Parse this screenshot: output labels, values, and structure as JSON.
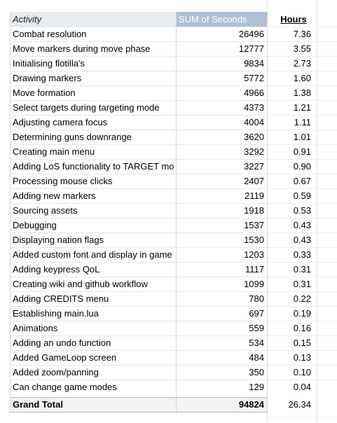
{
  "header": {
    "activity": "Activity",
    "sum_seconds": "SUM of Seconds",
    "hours": "Hours"
  },
  "rows": [
    {
      "activity": "Combat resolution",
      "seconds": "26496",
      "hours": "7.36"
    },
    {
      "activity": "Move markers during move phase",
      "seconds": "12777",
      "hours": "3.55"
    },
    {
      "activity": "Initialising flotilla's",
      "seconds": "9834",
      "hours": "2.73"
    },
    {
      "activity": "Drawing markers",
      "seconds": "5772",
      "hours": "1.60"
    },
    {
      "activity": "Move formation",
      "seconds": "4966",
      "hours": "1.38"
    },
    {
      "activity": "Select targets during targeting mode",
      "seconds": "4373",
      "hours": "1.21"
    },
    {
      "activity": "Adjusting camera focus",
      "seconds": "4004",
      "hours": "1.11"
    },
    {
      "activity": "Determining guns downrange",
      "seconds": "3620",
      "hours": "1.01"
    },
    {
      "activity": "Creating main menu",
      "seconds": "3292",
      "hours": "0.91"
    },
    {
      "activity": "Adding LoS functionality to TARGET mo",
      "seconds": "3227",
      "hours": "0.90"
    },
    {
      "activity": "Processing mouse clicks",
      "seconds": "2407",
      "hours": "0.67"
    },
    {
      "activity": "Adding new markers",
      "seconds": "2119",
      "hours": "0.59"
    },
    {
      "activity": "Sourcing assets",
      "seconds": "1918",
      "hours": "0.53"
    },
    {
      "activity": "Debugging",
      "seconds": "1537",
      "hours": "0.43"
    },
    {
      "activity": "Displaying nation flags",
      "seconds": "1530",
      "hours": "0.43"
    },
    {
      "activity": "Added custom font and display in game",
      "seconds": "1203",
      "hours": "0.33"
    },
    {
      "activity": "Adding keypress QoL",
      "seconds": "1117",
      "hours": "0.31"
    },
    {
      "activity": "Creating wiki and github workflow",
      "seconds": "1099",
      "hours": "0.31"
    },
    {
      "activity": "Adding CREDITS menu",
      "seconds": "780",
      "hours": "0.22"
    },
    {
      "activity": "Establishing main.lua",
      "seconds": "697",
      "hours": "0.19"
    },
    {
      "activity": "Animations",
      "seconds": "559",
      "hours": "0.16"
    },
    {
      "activity": "Adding an undo function",
      "seconds": "534",
      "hours": "0.15"
    },
    {
      "activity": "Added GameLoop screen",
      "seconds": "484",
      "hours": "0.13"
    },
    {
      "activity": "Added zoom/panning",
      "seconds": "350",
      "hours": "0.10"
    },
    {
      "activity": "Can change game modes",
      "seconds": "129",
      "hours": "0.04"
    }
  ],
  "total": {
    "label": "Grand Total",
    "seconds": "94824",
    "hours": "26.34"
  },
  "colors": {
    "header_activity_bg": "#e8ecf0",
    "header_sum_bg": "#aec0d5",
    "total_bg": "#f1f3f4"
  }
}
